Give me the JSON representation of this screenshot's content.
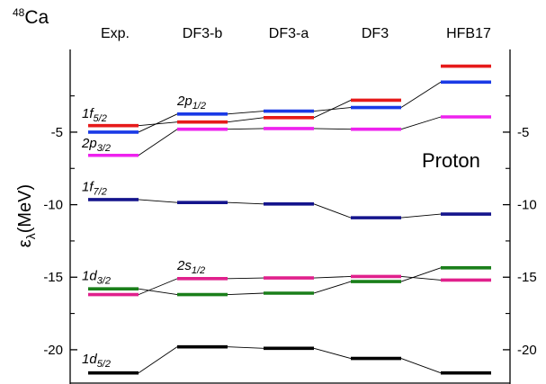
{
  "chart_data": {
    "type": "level-scheme",
    "nucleus": {
      "mass": "48",
      "symbol": "Ca"
    },
    "ylabel": {
      "main": "ε",
      "sub": "λ",
      "unit": "(MeV)"
    },
    "ylim": [
      -22.3,
      0.7
    ],
    "yticks": [
      -5,
      -10,
      -15,
      -20
    ],
    "tick_labels": [
      "-5",
      "-10",
      "-15",
      "-20"
    ],
    "columns": [
      "Exp.",
      "DF3-b",
      "DF3-a",
      "DF3",
      "HFB17"
    ],
    "annotation": "Proton",
    "colors": {
      "1d5/2": "#000000",
      "2s1/2": "#e0208c",
      "1d3/2": "#1a7f1a",
      "1f7/2": "#14148c",
      "2p3/2": "#ee22ee",
      "2p1/2": "#1a3ae6",
      "1f5/2": "#e61a1a"
    },
    "levels": [
      {
        "orbital": "1d5/2",
        "values": [
          -21.6,
          -19.8,
          -19.9,
          -20.6,
          -21.6
        ]
      },
      {
        "orbital": "2s1/2",
        "values": [
          -16.2,
          -15.1,
          -15.05,
          -14.95,
          -15.2
        ]
      },
      {
        "orbital": "1d3/2",
        "values": [
          -15.8,
          -16.2,
          -16.1,
          -15.3,
          -14.35
        ]
      },
      {
        "orbital": "1f7/2",
        "values": [
          -9.65,
          -9.85,
          -9.95,
          -10.9,
          -10.65
        ]
      },
      {
        "orbital": "2p3/2",
        "values": [
          -6.6,
          -4.8,
          -4.75,
          -4.8,
          -3.95
        ]
      },
      {
        "orbital": "2p1/2",
        "values": [
          -5.0,
          -3.75,
          -3.55,
          -3.3,
          -1.55
        ]
      },
      {
        "orbital": "1f5/2",
        "values": [
          -4.55,
          -4.3,
          -4.0,
          -2.8,
          -0.45
        ]
      }
    ],
    "connections": [
      {
        "orbital": "1d5/2",
        "segments": [
          [
            0,
            1
          ],
          [
            1,
            2
          ],
          [
            2,
            3
          ],
          [
            3,
            4
          ]
        ]
      },
      {
        "orbital": "2s1/2",
        "segments": [
          [
            0,
            1
          ],
          [
            1,
            2
          ],
          [
            2,
            3
          ],
          [
            3,
            4
          ]
        ]
      },
      {
        "orbital": "1d3/2",
        "segments": [
          [
            0,
            1
          ],
          [
            1,
            2
          ],
          [
            2,
            3
          ],
          [
            3,
            4
          ]
        ]
      },
      {
        "orbital": "1f7/2",
        "segments": [
          [
            0,
            1
          ],
          [
            1,
            2
          ],
          [
            2,
            3
          ],
          [
            3,
            4
          ]
        ]
      },
      {
        "orbital": "2p3/2",
        "segments": [
          [
            0,
            1
          ],
          [
            1,
            2
          ],
          [
            2,
            3
          ],
          [
            3,
            4
          ]
        ]
      },
      {
        "orbital": "2p1/2",
        "segments": [
          [
            0,
            1
          ],
          [
            1,
            2
          ],
          [
            2,
            3
          ],
          [
            3,
            4
          ]
        ]
      },
      {
        "orbital": "1f5/2",
        "segments": [
          [
            0,
            1
          ],
          [
            1,
            2
          ],
          [
            2,
            3
          ]
        ]
      }
    ],
    "orbital_labels": [
      {
        "main": "1f",
        "sub": "5/2",
        "col": 0,
        "y": -4.0
      },
      {
        "main": "2p",
        "sub": "3/2",
        "col": 0,
        "y": -6.05
      },
      {
        "main": "2p",
        "sub": "1/2",
        "col": 1,
        "y": -3.15
      },
      {
        "main": "1f",
        "sub": "7/2",
        "col": 0,
        "y": -9.05
      },
      {
        "main": "1d",
        "sub": "3/2",
        "col": 0,
        "y": -15.2
      },
      {
        "main": "2s",
        "sub": "1/2",
        "col": 1,
        "y": -14.5
      },
      {
        "main": "1d",
        "sub": "5/2",
        "col": 0,
        "y": -20.95
      }
    ]
  }
}
